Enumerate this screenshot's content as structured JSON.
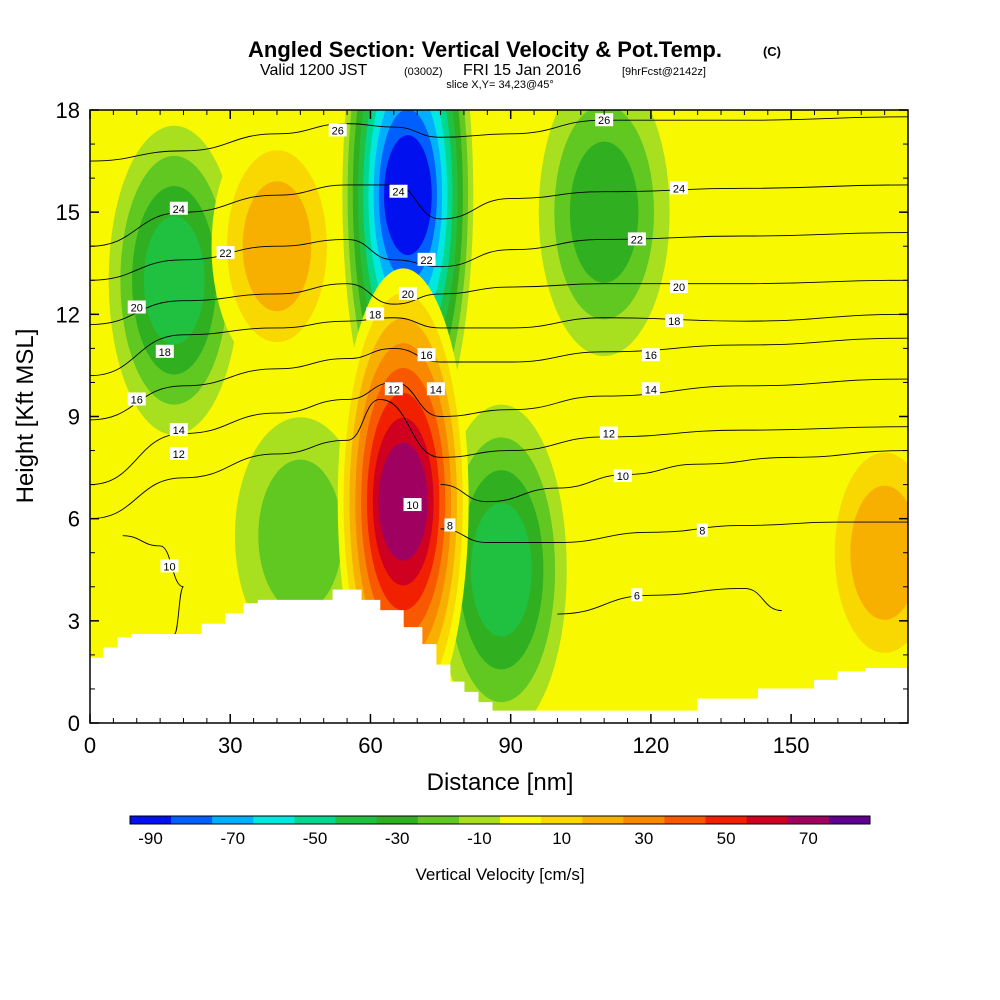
{
  "chart_data": {
    "type": "heatmap",
    "title": "Angled Section: Vertical Velocity & Pot.Temp.",
    "title_unit": "(C)",
    "subtitle_parts": [
      "Valid 1200 JST",
      "(0300Z)",
      "FRI 15 Jan 2016",
      "[9hrFcst@2142z]"
    ],
    "slice_label": "slice X,Y= 34,23@45°",
    "xlabel": "Distance [nm]",
    "ylabel": "Height [Kft MSL]",
    "xlim": [
      0,
      175
    ],
    "ylim": [
      0,
      18
    ],
    "x_ticks": [
      0,
      30,
      60,
      90,
      120,
      150
    ],
    "y_ticks": [
      0,
      3,
      6,
      9,
      12,
      15,
      18
    ],
    "colorbar": {
      "title": "Vertical Velocity [cm/s]",
      "levels": [
        -90,
        -80,
        -70,
        -60,
        -50,
        -40,
        -30,
        -20,
        -10,
        0,
        10,
        20,
        30,
        40,
        50,
        60,
        70,
        80
      ],
      "tick_labels": [
        "-90",
        "-70",
        "-50",
        "-30",
        "-10",
        "10",
        "30",
        "50",
        "70"
      ],
      "colors": [
        "#0010ee",
        "#0060ff",
        "#00b0ff",
        "#00e8e0",
        "#00d890",
        "#20c040",
        "#30b020",
        "#60c820",
        "#a8e020",
        "#f8f800",
        "#f8d800",
        "#f8b000",
        "#f88800",
        "#f85800",
        "#f02000",
        "#d00020",
        "#a00060",
        "#600090"
      ]
    },
    "vertical_velocity_features": [
      {
        "type": "downdraft",
        "x": 18,
        "y": 13,
        "min_value": -35
      },
      {
        "type": "downdraft",
        "x": 68,
        "y": 15.5,
        "min_value": -88
      },
      {
        "type": "downdraft",
        "x": 88,
        "y": 4.5,
        "min_value": -40
      },
      {
        "type": "downdraft",
        "x": 110,
        "y": 15,
        "min_value": -30
      },
      {
        "type": "downdraft",
        "x": 45,
        "y": 5.5,
        "min_value": -18
      },
      {
        "type": "updraft",
        "x": 67,
        "y": 6.5,
        "max_value": 72
      },
      {
        "type": "updraft",
        "x": 40,
        "y": 14,
        "max_value": 22
      },
      {
        "type": "updraft",
        "x": 170,
        "y": 5,
        "max_value": 25
      }
    ],
    "terrain": {
      "x": [
        0,
        3,
        3,
        6,
        6,
        9,
        9,
        12,
        12,
        24,
        24,
        29,
        29,
        33,
        33,
        36,
        36,
        52,
        52,
        58,
        58,
        62,
        62,
        67,
        67,
        71,
        71,
        74,
        74,
        77,
        77,
        80,
        80,
        83,
        83,
        86,
        86,
        89,
        89,
        104,
        104,
        130,
        130,
        143,
        143,
        155,
        155,
        160,
        160,
        166,
        166,
        175
      ],
      "y": [
        1.9,
        1.9,
        2.2,
        2.2,
        2.5,
        2.5,
        2.6,
        2.6,
        2.6,
        2.6,
        2.9,
        2.9,
        3.2,
        3.2,
        3.5,
        3.5,
        3.6,
        3.6,
        3.9,
        3.9,
        3.6,
        3.6,
        3.3,
        3.3,
        2.8,
        2.8,
        2.3,
        2.3,
        1.7,
        1.7,
        1.2,
        1.2,
        0.9,
        0.9,
        0.6,
        0.6,
        0.35,
        0.35,
        0.35,
        0.35,
        0.35,
        0.35,
        0.7,
        0.7,
        1.0,
        1.0,
        1.25,
        1.25,
        1.5,
        1.5,
        1.6,
        1.6
      ]
    },
    "isentropes": [
      {
        "value": "6",
        "x": [
          100,
          120,
          140,
          148
        ],
        "y": [
          3.2,
          3.75,
          3.95,
          3.3
        ],
        "label_x": 117,
        "label_y": 3.75
      },
      {
        "value": "8",
        "x": [
          75,
          85,
          100,
          120,
          140,
          160,
          175
        ],
        "y": [
          5.7,
          5.3,
          5.3,
          5.6,
          5.8,
          5.9,
          5.9
        ],
        "label_x": 131,
        "label_y": 5.65
      },
      {
        "value": "10",
        "x": [
          75,
          85,
          100,
          115,
          130,
          150,
          175
        ],
        "y": [
          7.0,
          6.5,
          6.9,
          7.3,
          7.6,
          7.8,
          8.0
        ],
        "label_x": 114,
        "label_y": 7.25
      },
      {
        "value": "12",
        "x": [
          0,
          20,
          40,
          55,
          62,
          75,
          90,
          110,
          140,
          175
        ],
        "y": [
          6.0,
          7.2,
          7.9,
          8.3,
          9.5,
          7.8,
          8.0,
          8.4,
          8.6,
          8.7
        ],
        "label_x": 111,
        "label_y": 8.5
      },
      {
        "value": "14",
        "x": [
          0,
          20,
          40,
          55,
          65,
          75,
          90,
          110,
          140,
          175
        ],
        "y": [
          7.0,
          8.5,
          9.1,
          9.5,
          10.0,
          9.0,
          9.2,
          9.6,
          9.9,
          10.1
        ],
        "label_x": 120,
        "label_y": 9.8
      },
      {
        "value": "16",
        "x": [
          0,
          20,
          40,
          55,
          65,
          75,
          90,
          110,
          140,
          175
        ],
        "y": [
          8.9,
          9.9,
          10.4,
          10.7,
          11.0,
          10.6,
          10.6,
          10.9,
          11.1,
          11.3
        ],
        "label_x": 120,
        "label_y": 10.8
      },
      {
        "value": "18",
        "x": [
          0,
          20,
          40,
          55,
          65,
          75,
          90,
          110,
          140,
          175
        ],
        "y": [
          10.2,
          11.4,
          11.6,
          11.8,
          11.9,
          11.6,
          11.6,
          11.9,
          11.8,
          12.0
        ],
        "label_x": 125,
        "label_y": 11.8
      },
      {
        "value": "20",
        "x": [
          0,
          20,
          40,
          55,
          65,
          75,
          90,
          110,
          140,
          175
        ],
        "y": [
          11.7,
          12.4,
          12.6,
          12.9,
          12.3,
          12.6,
          12.8,
          12.9,
          12.9,
          13.0
        ],
        "label_x": 126,
        "label_y": 12.8
      },
      {
        "value": "22",
        "x": [
          0,
          20,
          40,
          55,
          65,
          75,
          90,
          110,
          140,
          175
        ],
        "y": [
          13.0,
          13.6,
          14.0,
          14.2,
          13.6,
          13.4,
          13.9,
          14.2,
          14.3,
          14.4
        ],
        "label_x": 117,
        "label_y": 14.2
      },
      {
        "value": "24",
        "x": [
          0,
          20,
          40,
          55,
          65,
          75,
          90,
          110,
          140,
          175
        ],
        "y": [
          14.0,
          15.0,
          15.5,
          15.8,
          15.8,
          14.8,
          15.4,
          15.6,
          15.7,
          15.8
        ],
        "label_x": 126,
        "label_y": 15.7
      },
      {
        "value": "26",
        "x": [
          0,
          20,
          40,
          55,
          65,
          75,
          90,
          110,
          140,
          175
        ],
        "y": [
          16.5,
          16.8,
          17.3,
          17.6,
          17.5,
          17.2,
          17.3,
          17.7,
          17.7,
          17.8
        ],
        "label_x": 110,
        "label_y": 17.7
      },
      {
        "value": "10",
        "x": [
          7,
          15,
          20,
          18
        ],
        "y": [
          5.5,
          5.2,
          4.0,
          2.6
        ],
        "label_x": 17,
        "label_y": 4.6
      }
    ],
    "extra_contour_labels": [
      {
        "value": "24",
        "x": 19,
        "y": 15.1
      },
      {
        "value": "22",
        "x": 29,
        "y": 13.8
      },
      {
        "value": "20",
        "x": 10,
        "y": 12.2
      },
      {
        "value": "18",
        "x": 16,
        "y": 10.9
      },
      {
        "value": "16",
        "x": 10,
        "y": 9.5
      },
      {
        "value": "14",
        "x": 19,
        "y": 8.6
      },
      {
        "value": "12",
        "x": 19,
        "y": 7.9
      },
      {
        "value": "26",
        "x": 53,
        "y": 17.4
      },
      {
        "value": "24",
        "x": 66,
        "y": 15.6
      },
      {
        "value": "22",
        "x": 72,
        "y": 13.6
      },
      {
        "value": "20",
        "x": 68,
        "y": 12.6
      },
      {
        "value": "18",
        "x": 61,
        "y": 12.0
      },
      {
        "value": "16",
        "x": 72,
        "y": 10.8
      },
      {
        "value": "14",
        "x": 74,
        "y": 9.8
      },
      {
        "value": "12",
        "x": 65,
        "y": 9.8
      },
      {
        "value": "10",
        "x": 69,
        "y": 6.4
      },
      {
        "value": "8",
        "x": 77,
        "y": 5.8
      }
    ]
  }
}
